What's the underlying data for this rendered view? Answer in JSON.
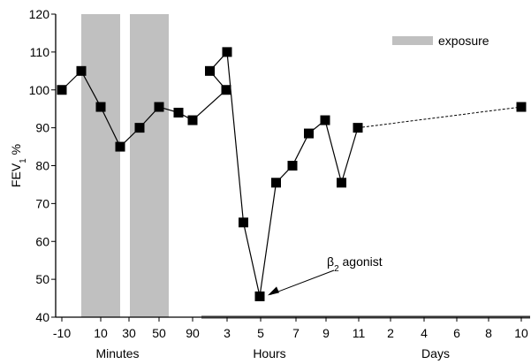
{
  "chart_data": {
    "type": "line",
    "title": "",
    "ylabel": "FEV",
    "ylabel_sub": "1",
    "ylabel_suffix": " %",
    "ylim": [
      40,
      120
    ],
    "y_ticks": [
      40,
      50,
      60,
      70,
      80,
      90,
      100,
      110,
      120
    ],
    "grid": false,
    "x_tick_labels": [
      "-10",
      "10",
      "30",
      "50",
      "90",
      "3",
      "5",
      "7",
      "9",
      "11",
      "2",
      "4",
      "6",
      "8",
      "10"
    ],
    "x_groups": [
      {
        "label": "Minutes",
        "ticks": [
          "-10",
          "10",
          "30",
          "50"
        ]
      },
      {
        "label": "Hours",
        "ticks": [
          "90",
          "3",
          "5",
          "7",
          "9",
          "11"
        ]
      },
      {
        "label": "Days",
        "ticks": [
          "2",
          "4",
          "6",
          "8",
          "10"
        ]
      }
    ],
    "exposure_periods": [
      {
        "from": 0,
        "to": 20
      },
      {
        "from": 25,
        "to": 45
      }
    ],
    "legend": {
      "label": "exposure",
      "color": "#c0c0c0",
      "position": "top-right"
    },
    "series": [
      {
        "points": [
          {
            "time": "-10 min",
            "y": 100
          },
          {
            "time": "0 min",
            "y": 105
          },
          {
            "time": "10 min",
            "y": 95.5
          },
          {
            "time": "20 min",
            "y": 85
          },
          {
            "time": "30 min",
            "y": 90
          },
          {
            "time": "40 min",
            "y": 95.5
          },
          {
            "time": "50 min",
            "y": 94
          },
          {
            "time": "70 min",
            "y": 92
          },
          {
            "time": "90 min",
            "y": 100
          },
          {
            "time": "2 h",
            "y": 105
          },
          {
            "time": "3 h",
            "y": 110
          },
          {
            "time": "4 h",
            "y": 65
          },
          {
            "time": "5 h",
            "y": 45.5
          },
          {
            "time": "6 h",
            "y": 75.5
          },
          {
            "time": "7 h",
            "y": 80
          },
          {
            "time": "8 h",
            "y": 88.5
          },
          {
            "time": "9 h",
            "y": 92
          },
          {
            "time": "10 h",
            "y": 75.5
          },
          {
            "time": "11 h",
            "y": 90
          }
        ],
        "color": "#000000"
      },
      {
        "style": "dashed",
        "points": [
          {
            "time": "11 h",
            "y": 90
          },
          {
            "time": "10 d",
            "y": 95.5
          }
        ],
        "color": "#000000"
      }
    ],
    "annotations": [
      {
        "text_main": "β",
        "text_sub": "2",
        "text_rest": " agonist",
        "target": "5 h"
      }
    ]
  }
}
